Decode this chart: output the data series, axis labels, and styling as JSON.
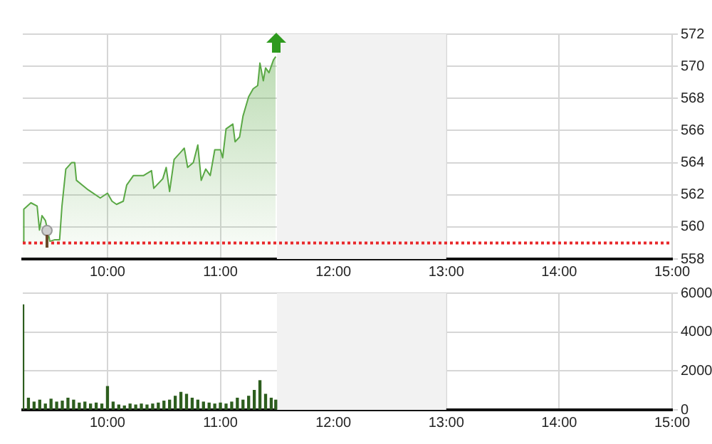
{
  "chart_data": [
    {
      "type": "area",
      "x": [
        9.25,
        9.259,
        9.322,
        9.377,
        9.398,
        9.42,
        9.45,
        9.47,
        9.49,
        9.534,
        9.576,
        9.597,
        9.631,
        9.682,
        9.71,
        9.725,
        9.83,
        9.936,
        10.0,
        10.04,
        10.08,
        10.14,
        10.17,
        10.23,
        10.32,
        10.39,
        10.41,
        10.49,
        10.52,
        10.55,
        10.59,
        10.68,
        10.71,
        10.76,
        10.8,
        10.83,
        10.87,
        10.91,
        10.95,
        11.0,
        11.02,
        11.05,
        11.11,
        11.13,
        11.17,
        11.2,
        11.25,
        11.29,
        11.33,
        11.35,
        11.38,
        11.4,
        11.43,
        11.47,
        11.49
      ],
      "values": [
        559.1,
        561.1,
        561.5,
        561.3,
        559.8,
        560.7,
        560.4,
        559.8,
        559.1,
        559.2,
        559.2,
        561.3,
        563.6,
        564.0,
        564.0,
        562.9,
        562.3,
        561.8,
        562.1,
        561.6,
        561.4,
        561.6,
        562.6,
        563.2,
        563.2,
        563.5,
        562.4,
        563.0,
        563.7,
        562.2,
        564.2,
        564.9,
        563.7,
        564.0,
        565.1,
        562.9,
        563.6,
        563.2,
        564.8,
        564.8,
        564.3,
        566.1,
        566.4,
        565.3,
        565.6,
        566.9,
        568.1,
        568.6,
        568.8,
        570.2,
        569.1,
        569.9,
        569.6,
        570.4,
        570.6
      ],
      "color": "#5aa845",
      "xlim": [
        9.25,
        15
      ],
      "xticks": [
        {
          "value": 10,
          "label": "10:00"
        },
        {
          "value": 11,
          "label": "11:00"
        },
        {
          "value": 12,
          "label": "12:00"
        },
        {
          "value": 13,
          "label": "13:00"
        },
        {
          "value": 14,
          "label": "14:00"
        },
        {
          "value": 15,
          "label": "15:00"
        }
      ],
      "ylim": [
        558,
        572
      ],
      "yticks": [
        558,
        560,
        562,
        564,
        566,
        568,
        570,
        572
      ],
      "grid": true,
      "ref_lines": [
        {
          "axis": "y",
          "value": 559,
          "color": "#e8282b",
          "line_style": "dotted"
        }
      ],
      "bands": [
        {
          "axis": "x",
          "from": 11.5,
          "to": 13,
          "color": "#f2f2f2"
        }
      ]
    },
    {
      "type": "bar",
      "x": [
        9.25,
        9.3,
        9.35,
        9.4,
        9.45,
        9.5,
        9.55,
        9.6,
        9.65,
        9.7,
        9.75,
        9.8,
        9.85,
        9.9,
        9.95,
        10.0,
        10.05,
        10.1,
        10.15,
        10.2,
        10.25,
        10.3,
        10.35,
        10.4,
        10.45,
        10.5,
        10.55,
        10.6,
        10.65,
        10.7,
        10.75,
        10.8,
        10.85,
        10.9,
        10.95,
        11.0,
        11.05,
        11.1,
        11.15,
        11.2,
        11.25,
        11.3,
        11.35,
        11.4,
        11.45,
        11.49
      ],
      "values": [
        5400,
        600,
        400,
        500,
        300,
        550,
        400,
        450,
        600,
        500,
        350,
        400,
        300,
        350,
        300,
        1200,
        400,
        250,
        200,
        300,
        250,
        300,
        250,
        300,
        350,
        450,
        500,
        700,
        900,
        800,
        600,
        500,
        400,
        350,
        300,
        350,
        300,
        400,
        600,
        500,
        700,
        1000,
        1500,
        800,
        600,
        500
      ],
      "color": "#2d5e1e",
      "xlim": [
        9.25,
        15
      ],
      "xticks": [
        {
          "value": 10,
          "label": "10:00"
        },
        {
          "value": 11,
          "label": "11:00"
        },
        {
          "value": 12,
          "label": "12:00"
        },
        {
          "value": 13,
          "label": "13:00"
        },
        {
          "value": 14,
          "label": "14:00"
        },
        {
          "value": 15,
          "label": "15:00"
        }
      ],
      "ylim": [
        0,
        6000
      ],
      "yticks": [
        0,
        2000,
        4000,
        6000
      ],
      "grid": true,
      "bands": [
        {
          "axis": "x",
          "from": 11.5,
          "to": 13,
          "color": "#f2f2f2"
        }
      ]
    }
  ]
}
